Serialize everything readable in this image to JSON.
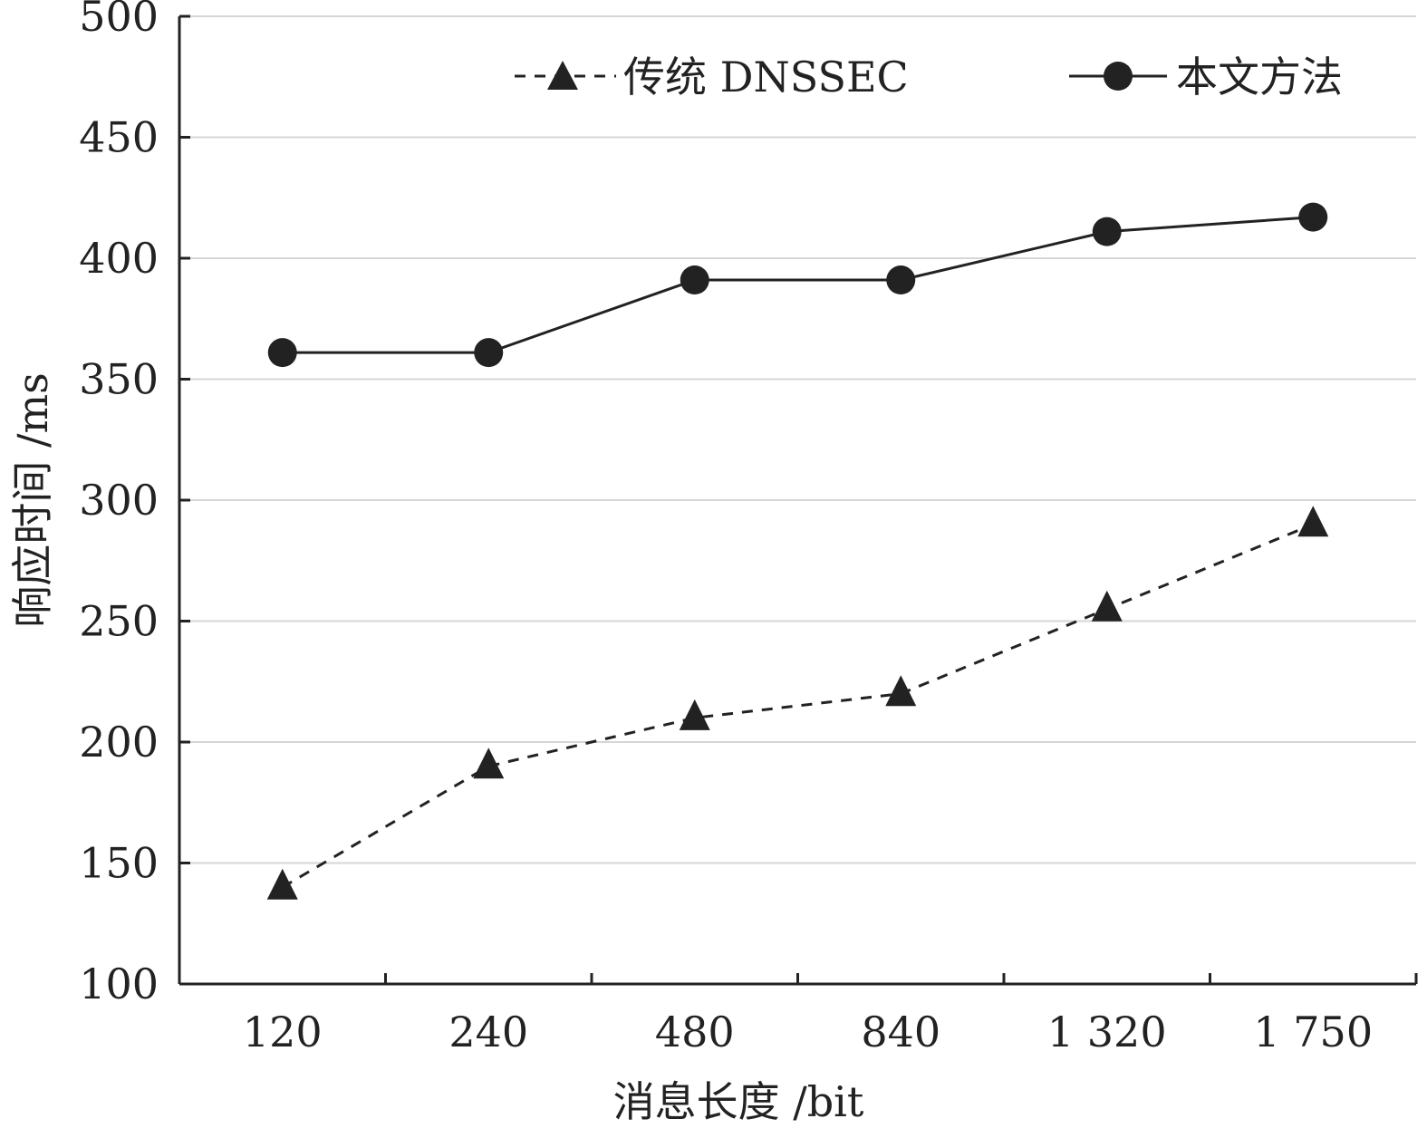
{
  "chart_data": {
    "type": "line",
    "title": "",
    "xlabel": "消息长度 /bit",
    "ylabel": "响应时间 /ms",
    "categories": [
      "120",
      "240",
      "480",
      "840",
      "1 320",
      "1 750"
    ],
    "ylim": [
      100,
      500
    ],
    "yticks": [
      100,
      150,
      200,
      250,
      300,
      350,
      400,
      450,
      500
    ],
    "grid": "horizontal",
    "legend_position": "top-right",
    "series": [
      {
        "name": "传统 DNSSEC",
        "marker": "triangle",
        "line_style": "dashed",
        "color": "#222222",
        "values": [
          140,
          190,
          210,
          220,
          255,
          290
        ]
      },
      {
        "name": "本文方法",
        "marker": "circle",
        "line_style": "solid",
        "color": "#222222",
        "values": [
          361,
          361,
          391,
          391,
          411,
          417
        ]
      }
    ]
  }
}
